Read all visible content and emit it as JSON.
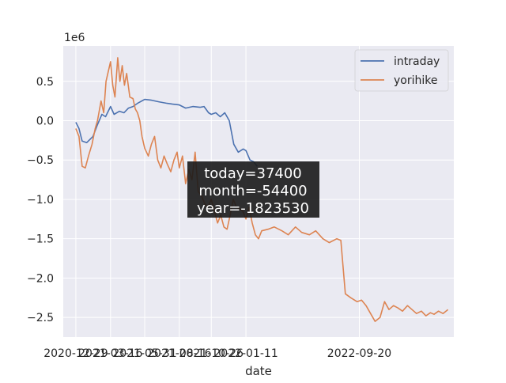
{
  "chart_data": {
    "type": "line",
    "title": "",
    "xlabel": "date",
    "ylabel": "",
    "y_offset_label": "1e6",
    "y_scale": 1000000,
    "ylim": [
      -2.75,
      0.95
    ],
    "xlim": [
      "2020-12-01",
      "2023-04-18"
    ],
    "x_ticks": [
      "2020-12-29",
      "2021-03-16",
      "2021-05-31",
      "2021-08-16",
      "2021-10-26",
      "2022-01-11",
      "2022-09-20"
    ],
    "y_ticks": [
      0.5,
      0.0,
      -0.5,
      -1.0,
      -1.5,
      -2.0,
      -2.5
    ],
    "y_tick_labels": [
      "0.5",
      "0.0",
      "−0.5",
      "−1.0",
      "−1.5",
      "−2.0",
      "−2.5"
    ],
    "grid": true,
    "legend_position": "top-right",
    "annotation_lines": [
      "today=37400",
      "month=-54400",
      "year=-1823530"
    ],
    "series": [
      {
        "name": "intraday",
        "color": "#4c72b0",
        "x": [
          "2020-12-29",
          "2021-01-05",
          "2021-01-12",
          "2021-01-22",
          "2021-02-05",
          "2021-02-15",
          "2021-02-25",
          "2021-03-05",
          "2021-03-16",
          "2021-03-24",
          "2021-04-05",
          "2021-04-15",
          "2021-04-25",
          "2021-05-05",
          "2021-05-15",
          "2021-05-31",
          "2021-06-15",
          "2021-07-01",
          "2021-07-20",
          "2021-08-01",
          "2021-08-16",
          "2021-08-30",
          "2021-09-15",
          "2021-10-01",
          "2021-10-10",
          "2021-10-20",
          "2021-10-26",
          "2021-11-05",
          "2021-11-15",
          "2021-11-25",
          "2021-12-05",
          "2021-12-15",
          "2021-12-25",
          "2022-01-05",
          "2022-01-11",
          "2022-01-20",
          "2022-01-28",
          "2022-02-05"
        ],
        "values": [
          -0.02,
          -0.1,
          -0.26,
          -0.28,
          -0.2,
          -0.05,
          0.08,
          0.05,
          0.18,
          0.08,
          0.12,
          0.1,
          0.16,
          0.18,
          0.22,
          0.27,
          0.26,
          0.24,
          0.22,
          0.21,
          0.2,
          0.16,
          0.18,
          0.17,
          0.18,
          0.1,
          0.08,
          0.1,
          0.05,
          0.1,
          0.0,
          -0.3,
          -0.4,
          -0.36,
          -0.38,
          -0.5,
          -0.52,
          -0.58
        ]
      },
      {
        "name": "yorihike",
        "color": "#dd8452",
        "x": [
          "2020-12-29",
          "2021-01-05",
          "2021-01-12",
          "2021-01-19",
          "2021-01-26",
          "2021-02-03",
          "2021-02-10",
          "2021-02-15",
          "2021-02-23",
          "2021-03-01",
          "2021-03-06",
          "2021-03-16",
          "2021-03-21",
          "2021-03-26",
          "2021-04-01",
          "2021-04-06",
          "2021-04-11",
          "2021-04-16",
          "2021-04-21",
          "2021-04-28",
          "2021-05-05",
          "2021-05-10",
          "2021-05-15",
          "2021-05-20",
          "2021-05-25",
          "2021-05-31",
          "2021-06-08",
          "2021-06-15",
          "2021-06-22",
          "2021-06-29",
          "2021-07-06",
          "2021-07-13",
          "2021-07-20",
          "2021-07-28",
          "2021-08-04",
          "2021-08-11",
          "2021-08-16",
          "2021-08-23",
          "2021-08-30",
          "2021-09-06",
          "2021-09-13",
          "2021-09-20",
          "2021-09-27",
          "2021-10-04",
          "2021-10-11",
          "2021-10-18",
          "2021-10-26",
          "2021-11-02",
          "2021-11-09",
          "2021-11-16",
          "2021-11-23",
          "2021-11-30",
          "2021-12-07",
          "2021-12-14",
          "2021-12-21",
          "2021-12-28",
          "2022-01-04",
          "2022-01-11",
          "2022-01-18",
          "2022-01-25",
          "2022-02-01",
          "2022-02-08",
          "2022-02-15",
          "2022-03-01",
          "2022-03-15",
          "2022-04-01",
          "2022-04-15",
          "2022-05-01",
          "2022-05-15",
          "2022-06-01",
          "2022-06-15",
          "2022-07-01",
          "2022-07-15",
          "2022-08-01",
          "2022-08-10",
          "2022-08-20",
          "2022-09-01",
          "2022-09-15",
          "2022-09-25",
          "2022-10-05",
          "2022-10-15",
          "2022-10-25",
          "2022-11-05",
          "2022-11-15",
          "2022-11-25",
          "2022-12-05",
          "2022-12-15",
          "2022-12-25",
          "2023-01-05",
          "2023-01-15",
          "2023-01-25",
          "2023-02-05",
          "2023-02-15",
          "2023-02-25",
          "2023-03-05",
          "2023-03-15",
          "2023-03-25",
          "2023-04-05"
        ],
        "values": [
          -0.1,
          -0.2,
          -0.58,
          -0.6,
          -0.45,
          -0.3,
          -0.1,
          0.0,
          0.25,
          0.1,
          0.5,
          0.75,
          0.45,
          0.3,
          0.8,
          0.5,
          0.7,
          0.45,
          0.6,
          0.3,
          0.28,
          0.15,
          0.1,
          0.0,
          -0.2,
          -0.35,
          -0.45,
          -0.3,
          -0.2,
          -0.5,
          -0.6,
          -0.45,
          -0.55,
          -0.65,
          -0.5,
          -0.4,
          -0.6,
          -0.45,
          -0.8,
          -0.62,
          -0.75,
          -0.4,
          -0.9,
          -0.95,
          -1.05,
          -1.1,
          -1.0,
          -1.15,
          -1.3,
          -1.2,
          -1.35,
          -1.38,
          -1.2,
          -1.0,
          -1.1,
          -1.12,
          -1.15,
          -1.25,
          -1.1,
          -1.3,
          -1.45,
          -1.5,
          -1.4,
          -1.38,
          -1.35,
          -1.4,
          -1.45,
          -1.35,
          -1.42,
          -1.45,
          -1.4,
          -1.5,
          -1.55,
          -1.5,
          -1.52,
          -2.2,
          -2.25,
          -2.3,
          -2.28,
          -2.35,
          -2.45,
          -2.55,
          -2.5,
          -2.3,
          -2.4,
          -2.35,
          -2.38,
          -2.42,
          -2.35,
          -2.4,
          -2.45,
          -2.42,
          -2.48,
          -2.44,
          -2.46,
          -2.42,
          -2.45,
          -2.4
        ]
      }
    ]
  }
}
